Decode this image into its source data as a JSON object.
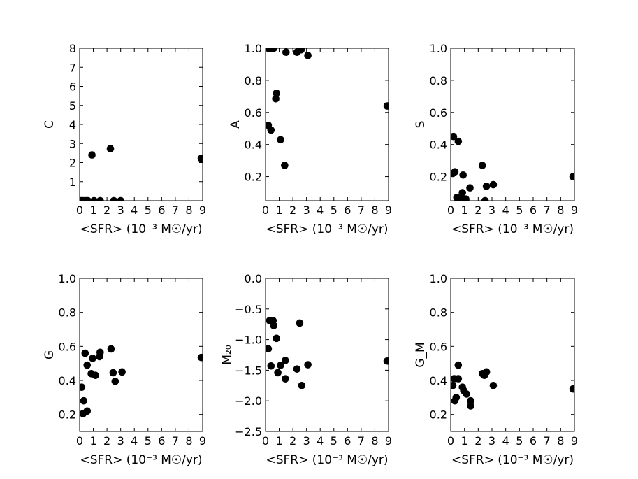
{
  "chart_data": [
    {
      "type": "scatter",
      "ylabel": "C",
      "xlabel": "<SFR> (10⁻³ M☉/yr)",
      "xlim": [
        0,
        9
      ],
      "ylim": [
        0,
        8
      ],
      "xticks": [
        "0",
        "1",
        "2",
        "3",
        "4",
        "5",
        "6",
        "7",
        "8",
        "9"
      ],
      "yticks": [
        "1",
        "2",
        "3",
        "4",
        "5",
        "6",
        "7",
        "8"
      ],
      "ytick_values": [
        1,
        2,
        3,
        4,
        5,
        6,
        7,
        8
      ],
      "points": [
        {
          "x": 0.1,
          "y": 0.0
        },
        {
          "x": 0.25,
          "y": 0.0
        },
        {
          "x": 0.45,
          "y": 0.0
        },
        {
          "x": 0.6,
          "y": 0.0
        },
        {
          "x": 0.9,
          "y": 2.4
        },
        {
          "x": 1.05,
          "y": 0.0
        },
        {
          "x": 1.5,
          "y": 0.0
        },
        {
          "x": 2.25,
          "y": 2.73
        },
        {
          "x": 2.5,
          "y": 0.0
        },
        {
          "x": 3.0,
          "y": 0.0
        },
        {
          "x": 8.9,
          "y": 2.22
        }
      ]
    },
    {
      "type": "scatter",
      "ylabel": "A",
      "xlabel": "<SFR> (10⁻³ M☉/yr)",
      "xlim": [
        0,
        9
      ],
      "ylim": [
        0.05,
        1.0
      ],
      "xticks": [
        "0",
        "1",
        "2",
        "3",
        "4",
        "5",
        "6",
        "7",
        "8",
        "9"
      ],
      "yticks": [
        "0.2",
        "0.4",
        "0.6",
        "0.8",
        "1.0"
      ],
      "ytick_values": [
        0.2,
        0.4,
        0.6,
        0.8,
        1.0
      ],
      "points": [
        {
          "x": 0.2,
          "y": 1.0
        },
        {
          "x": 0.45,
          "y": 1.0
        },
        {
          "x": 0.6,
          "y": 1.0
        },
        {
          "x": 0.2,
          "y": 0.52
        },
        {
          "x": 0.4,
          "y": 0.49
        },
        {
          "x": 0.8,
          "y": 0.72
        },
        {
          "x": 0.75,
          "y": 0.685
        },
        {
          "x": 1.1,
          "y": 0.43
        },
        {
          "x": 1.4,
          "y": 0.27
        },
        {
          "x": 1.5,
          "y": 0.975
        },
        {
          "x": 2.3,
          "y": 0.975
        },
        {
          "x": 2.6,
          "y": 0.99
        },
        {
          "x": 3.1,
          "y": 0.955
        },
        {
          "x": 8.9,
          "y": 0.64
        }
      ]
    },
    {
      "type": "scatter",
      "ylabel": "S",
      "xlabel": "<SFR> (10⁻³ M☉/yr)",
      "xlim": [
        0,
        9
      ],
      "ylim": [
        0.05,
        1.0
      ],
      "xticks": [
        "0",
        "1",
        "2",
        "3",
        "4",
        "5",
        "6",
        "7",
        "8",
        "9"
      ],
      "yticks": [
        "0.2",
        "0.4",
        "0.6",
        "0.8",
        "1.0"
      ],
      "ytick_values": [
        0.2,
        0.4,
        0.6,
        0.8,
        1.0
      ],
      "points": [
        {
          "x": 0.2,
          "y": 0.45
        },
        {
          "x": 0.55,
          "y": 0.42
        },
        {
          "x": 0.15,
          "y": 0.22
        },
        {
          "x": 0.3,
          "y": 0.23
        },
        {
          "x": 0.45,
          "y": 0.07
        },
        {
          "x": 0.7,
          "y": 0.06
        },
        {
          "x": 0.9,
          "y": 0.21
        },
        {
          "x": 0.85,
          "y": 0.1
        },
        {
          "x": 1.1,
          "y": 0.06
        },
        {
          "x": 1.4,
          "y": 0.13
        },
        {
          "x": 2.3,
          "y": 0.27
        },
        {
          "x": 2.6,
          "y": 0.14
        },
        {
          "x": 3.1,
          "y": 0.15
        },
        {
          "x": 8.9,
          "y": 0.2
        },
        {
          "x": 2.5,
          "y": 0.05
        }
      ]
    },
    {
      "type": "scatter",
      "ylabel": "G",
      "xlabel": "<SFR> (10⁻³ M☉/yr)",
      "xlim": [
        0,
        9
      ],
      "ylim": [
        0.1,
        1.0
      ],
      "xticks": [
        "0",
        "1",
        "2",
        "3",
        "4",
        "5",
        "6",
        "7",
        "8",
        "9"
      ],
      "yticks": [
        "0.2",
        "0.4",
        "0.6",
        "0.8",
        "1.0"
      ],
      "ytick_values": [
        0.2,
        0.4,
        0.6,
        0.8,
        1.0
      ],
      "points": [
        {
          "x": 0.15,
          "y": 0.36
        },
        {
          "x": 0.3,
          "y": 0.28
        },
        {
          "x": 0.25,
          "y": 0.205
        },
        {
          "x": 0.55,
          "y": 0.22
        },
        {
          "x": 0.4,
          "y": 0.56
        },
        {
          "x": 0.55,
          "y": 0.49
        },
        {
          "x": 0.85,
          "y": 0.44
        },
        {
          "x": 0.95,
          "y": 0.53
        },
        {
          "x": 1.15,
          "y": 0.43
        },
        {
          "x": 1.5,
          "y": 0.565
        },
        {
          "x": 1.45,
          "y": 0.54
        },
        {
          "x": 2.3,
          "y": 0.585
        },
        {
          "x": 2.45,
          "y": 0.445
        },
        {
          "x": 2.6,
          "y": 0.395
        },
        {
          "x": 3.1,
          "y": 0.45
        },
        {
          "x": 8.9,
          "y": 0.535
        }
      ]
    },
    {
      "type": "scatter",
      "ylabel": "M₂₀",
      "xlabel": "<SFR> (10⁻³ M☉/yr)",
      "xlim": [
        0,
        9
      ],
      "ylim": [
        -2.5,
        0.0
      ],
      "xticks": [
        "0",
        "1",
        "2",
        "3",
        "4",
        "5",
        "6",
        "7",
        "8",
        "9"
      ],
      "yticks": [
        "0.0",
        "−0.5",
        "−1.0",
        "−1.5",
        "−2.0",
        "−2.5"
      ],
      "ytick_values": [
        0.0,
        -0.5,
        -1.0,
        -1.5,
        -2.0,
        -2.5
      ],
      "points": [
        {
          "x": 0.2,
          "y": -1.15
        },
        {
          "x": 0.3,
          "y": -0.69
        },
        {
          "x": 0.55,
          "y": -0.69
        },
        {
          "x": 0.6,
          "y": -0.77
        },
        {
          "x": 0.8,
          "y": -0.98
        },
        {
          "x": 0.4,
          "y": -1.43
        },
        {
          "x": 0.9,
          "y": -1.54
        },
        {
          "x": 1.1,
          "y": -1.42
        },
        {
          "x": 1.45,
          "y": -1.34
        },
        {
          "x": 1.45,
          "y": -1.64
        },
        {
          "x": 2.3,
          "y": -1.48
        },
        {
          "x": 2.5,
          "y": -0.73
        },
        {
          "x": 2.65,
          "y": -1.75
        },
        {
          "x": 3.1,
          "y": -1.41
        },
        {
          "x": 8.9,
          "y": -1.35
        }
      ]
    },
    {
      "type": "scatter",
      "ylabel": "G_M",
      "xlabel": "<SFR> (10⁻³ M☉/yr)",
      "xlim": [
        0,
        9
      ],
      "ylim": [
        0.1,
        1.0
      ],
      "xticks": [
        "0",
        "1",
        "2",
        "3",
        "4",
        "5",
        "6",
        "7",
        "8",
        "9"
      ],
      "yticks": [
        "0.2",
        "0.4",
        "0.6",
        "0.8",
        "1.0"
      ],
      "ytick_values": [
        0.2,
        0.4,
        0.6,
        0.8,
        1.0
      ],
      "points": [
        {
          "x": 0.15,
          "y": 0.37
        },
        {
          "x": 0.25,
          "y": 0.41
        },
        {
          "x": 0.3,
          "y": 0.28
        },
        {
          "x": 0.4,
          "y": 0.3
        },
        {
          "x": 0.55,
          "y": 0.41
        },
        {
          "x": 0.55,
          "y": 0.49
        },
        {
          "x": 0.85,
          "y": 0.36
        },
        {
          "x": 0.95,
          "y": 0.34
        },
        {
          "x": 1.15,
          "y": 0.32
        },
        {
          "x": 1.45,
          "y": 0.28
        },
        {
          "x": 1.45,
          "y": 0.25
        },
        {
          "x": 2.3,
          "y": 0.44
        },
        {
          "x": 2.45,
          "y": 0.43
        },
        {
          "x": 2.6,
          "y": 0.45
        },
        {
          "x": 3.1,
          "y": 0.37
        },
        {
          "x": 8.9,
          "y": 0.35
        }
      ]
    }
  ]
}
